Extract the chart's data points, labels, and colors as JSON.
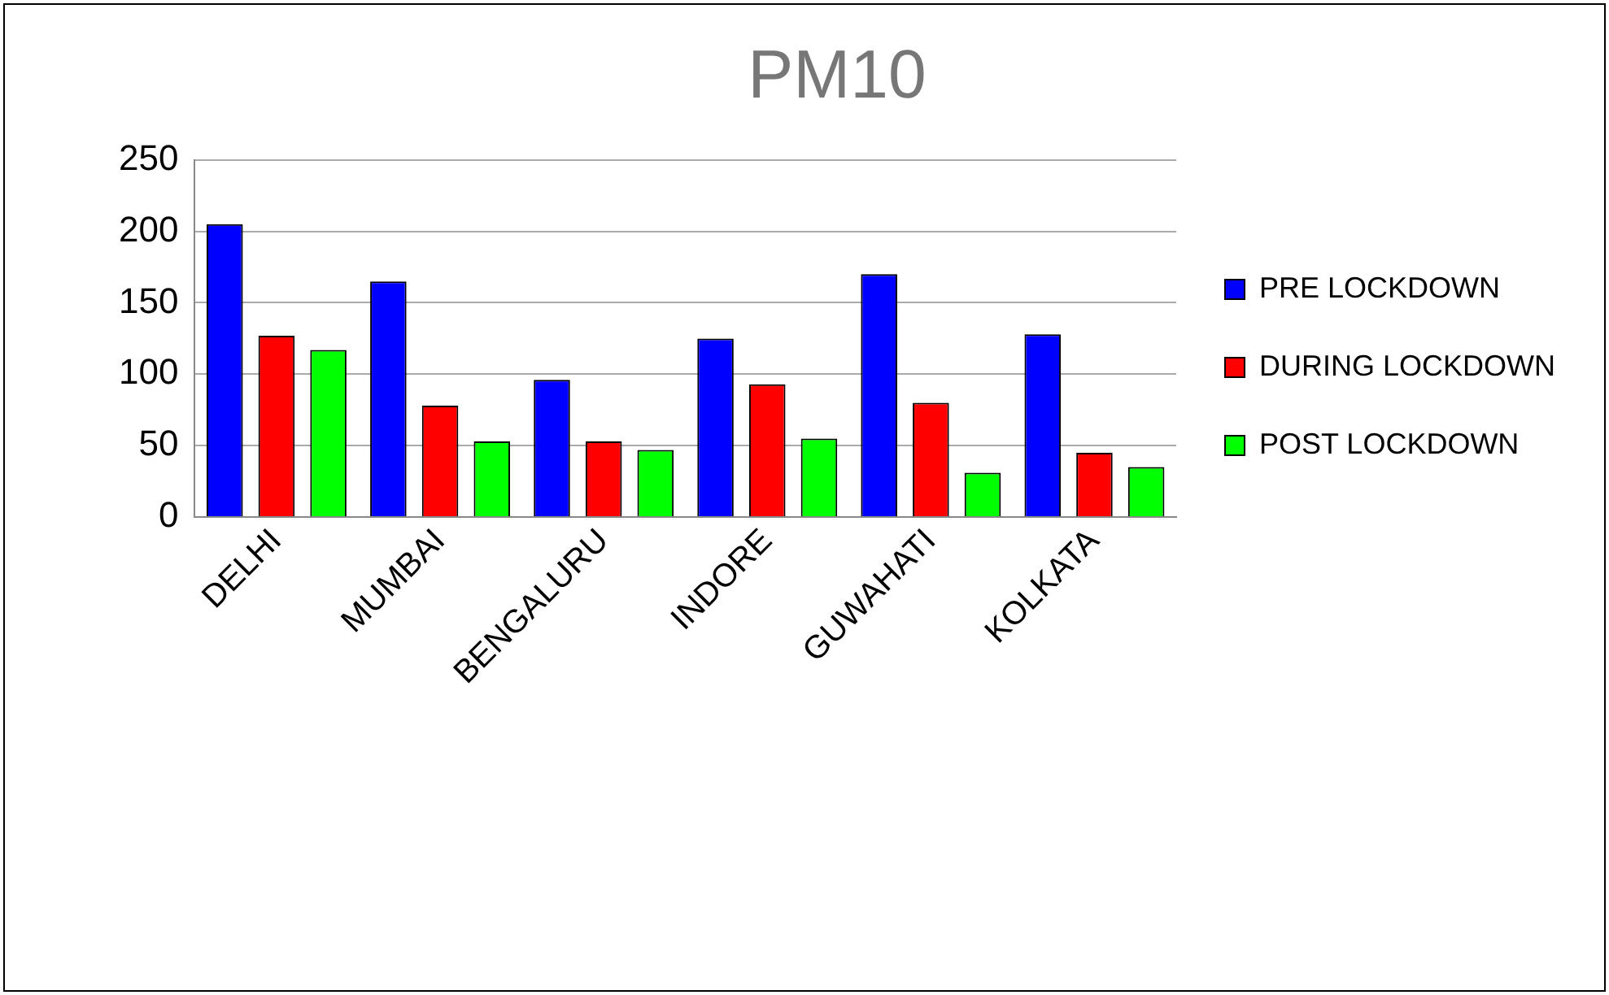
{
  "chart_data": {
    "type": "bar",
    "title": "PM10",
    "categories": [
      "DELHI",
      "MUMBAI",
      "BENGALURU",
      "INDORE",
      "GUWAHATI",
      "KOLKATA"
    ],
    "series": [
      {
        "name": "PRE LOCKDOWN",
        "color": "#0000ff",
        "values": [
          205,
          165,
          96,
          125,
          170,
          128
        ]
      },
      {
        "name": "DURING LOCKDOWN",
        "color": "#ff0000",
        "values": [
          127,
          78,
          53,
          93,
          80,
          45
        ]
      },
      {
        "name": "POST LOCKDOWN",
        "color": "#00ff00",
        "values": [
          117,
          53,
          47,
          55,
          31,
          35
        ]
      }
    ],
    "ylim": [
      0,
      250
    ],
    "yticks": [
      0,
      50,
      100,
      150,
      200,
      250
    ],
    "grid": "y",
    "legend": "right"
  }
}
